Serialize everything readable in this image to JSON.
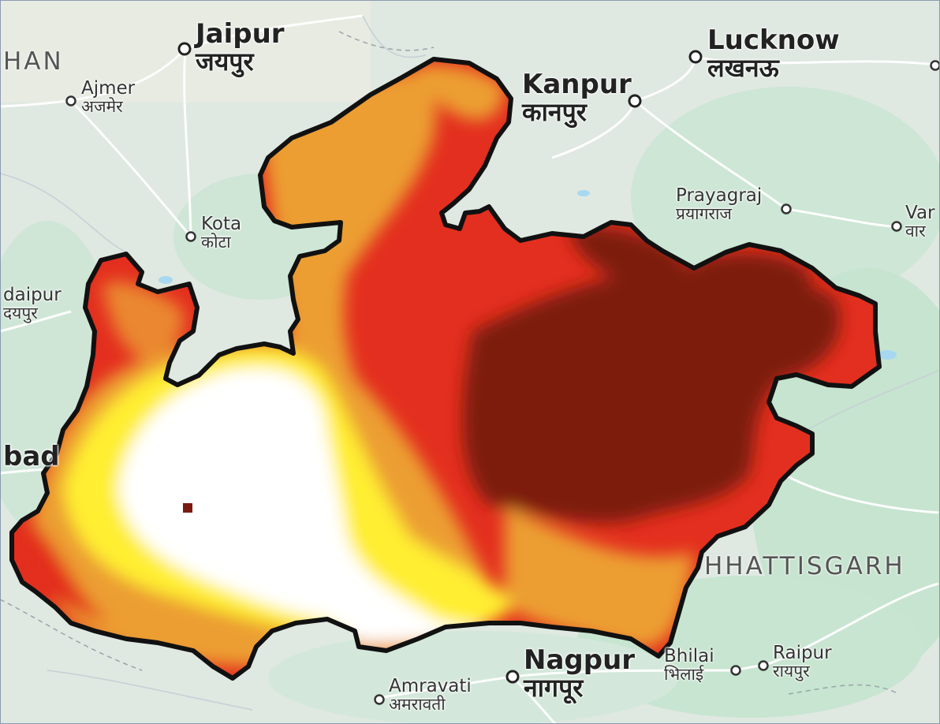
{
  "places": [
    {
      "id": "jaipur",
      "en": "Jaipur",
      "hi": "जयपुर",
      "size": "big"
    },
    {
      "id": "lucknow",
      "en": "Lucknow",
      "hi": "लखनऊ",
      "size": "big"
    },
    {
      "id": "kanpur",
      "en": "Kanpur",
      "hi": "कानपुर",
      "size": "big"
    },
    {
      "id": "ajmer",
      "en": "Ajmer",
      "hi": "अजमेर",
      "size": "med"
    },
    {
      "id": "kota",
      "en": "Kota",
      "hi": "कोटा",
      "size": "med"
    },
    {
      "id": "prayagraj",
      "en": "Prayagraj",
      "hi": "प्रयागराज",
      "size": "med"
    },
    {
      "id": "varanasi",
      "en": "Var",
      "hi": "वार",
      "size": "med"
    },
    {
      "id": "udaipur",
      "en": "daipur",
      "hi": "दयपुर",
      "size": "med"
    },
    {
      "id": "ahmedabad",
      "en": "bad",
      "hi": "",
      "size": "big"
    },
    {
      "id": "vadodara",
      "en": "",
      "hi": "",
      "size": "big"
    },
    {
      "id": "nagpur",
      "en": "Nagpur",
      "hi": "नागपूर",
      "size": "big"
    },
    {
      "id": "amravati",
      "en": "Amravati",
      "hi": "अमरावती",
      "size": "med"
    },
    {
      "id": "bhilai",
      "en": "Bhilai",
      "hi": "भिलाई",
      "size": "med"
    },
    {
      "id": "raipur",
      "en": "Raipur",
      "hi": "रायपुर",
      "size": "med"
    }
  ],
  "regions": {
    "rajasthan": "HAN",
    "chhattisgarh": "HHATTISGARH"
  },
  "overlay_colors": {
    "white": "#ffffff",
    "yellow": "#ffee33",
    "orange": "#ec9e33",
    "red": "#e32f1f",
    "dark_red": "#7d1a10"
  },
  "basemap_colors": {
    "land": "#dfe8e1",
    "forest": "#c9e6d2",
    "road": "#ffffff",
    "water": "#a8d8f0",
    "outline": "#111111"
  }
}
